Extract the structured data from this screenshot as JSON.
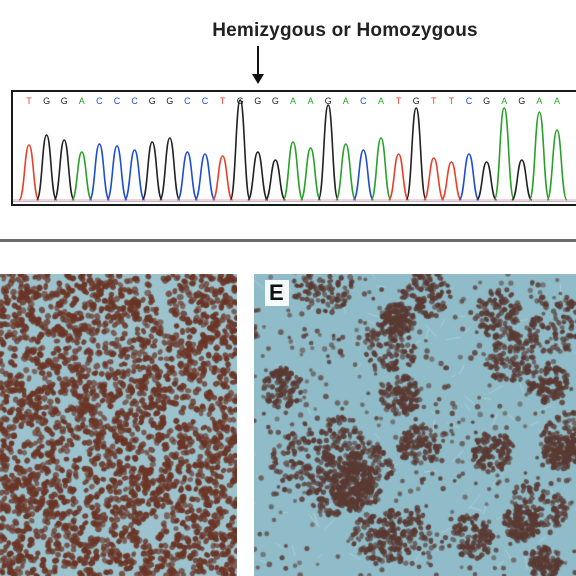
{
  "header": {
    "title": "Hemizygous or Homozygous"
  },
  "sequence": {
    "bases": [
      "T",
      "G",
      "G",
      "A",
      "C",
      "C",
      "C",
      "G",
      "G",
      "C",
      "C",
      "T",
      "G",
      "G",
      "G",
      "A",
      "A",
      "G",
      "A",
      "C",
      "A",
      "T",
      "G",
      "T",
      "T",
      "C",
      "G",
      "A",
      "G",
      "A",
      "A"
    ],
    "colors": {
      "A": "#2aa12a",
      "C": "#1f4fd1",
      "G": "#222222",
      "T": "#e8402a"
    }
  },
  "panels": {
    "d": {
      "stain_color": "#6b3526",
      "background_color": "#9cc3cd"
    },
    "e": {
      "label": "E",
      "stain_color": "#5a3a33",
      "background_color": "#8fbcc8"
    }
  }
}
